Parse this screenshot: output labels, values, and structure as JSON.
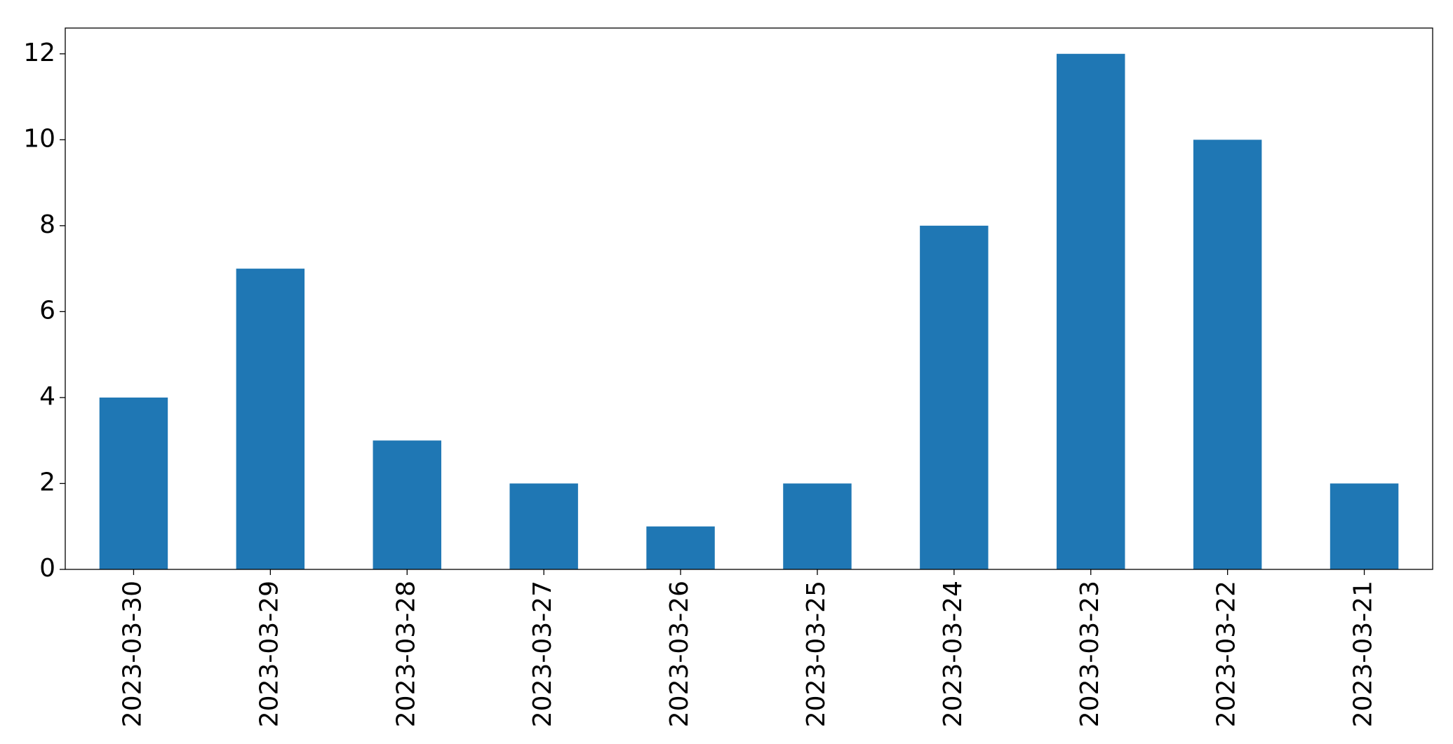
{
  "chart_data": {
    "type": "bar",
    "categories": [
      "2023-03-30",
      "2023-03-29",
      "2023-03-28",
      "2023-03-27",
      "2023-03-26",
      "2023-03-25",
      "2023-03-24",
      "2023-03-23",
      "2023-03-22",
      "2023-03-21"
    ],
    "values": [
      4,
      7,
      3,
      2,
      1,
      2,
      8,
      12,
      10,
      2
    ],
    "color": "#1f77b4",
    "ylim": [
      0,
      12.6
    ],
    "yticks": [
      0,
      2,
      4,
      6,
      8,
      10,
      12
    ],
    "grid": false
  }
}
